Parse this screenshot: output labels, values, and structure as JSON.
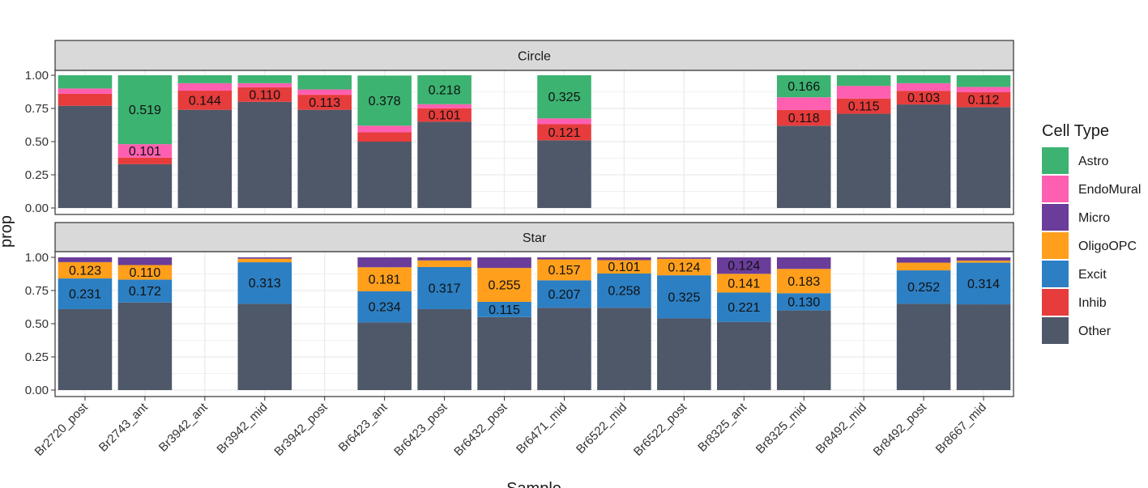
{
  "chart_data": {
    "type": "bar",
    "stacked": true,
    "facet_by": "row",
    "xlabel": "Sample",
    "ylabel": "prop",
    "ylim": [
      0,
      1
    ],
    "y_ticks": [
      "0.00",
      "0.25",
      "0.50",
      "0.75",
      "1.00"
    ],
    "grid": true,
    "legend_position": "right",
    "legend_title": "Cell Type",
    "categories": [
      "Br2720_post",
      "Br2743_ant",
      "Br3942_ant",
      "Br3942_mid",
      "Br3942_post",
      "Br6423_ant",
      "Br6423_post",
      "Br6432_post",
      "Br6471_mid",
      "Br6522_mid",
      "Br6522_post",
      "Br8325_ant",
      "Br8325_mid",
      "Br8492_mid",
      "Br8492_post",
      "Br8667_mid"
    ],
    "cell_types": [
      {
        "name": "Astro",
        "color": "#3cb371"
      },
      {
        "name": "EndoMural",
        "color": "#ff5fb0"
      },
      {
        "name": "Micro",
        "color": "#6a3d9a"
      },
      {
        "name": "OligoOPC",
        "color": "#ff9f1c"
      },
      {
        "name": "Excit",
        "color": "#2c7fc3"
      },
      {
        "name": "Inhib",
        "color": "#e63c3c"
      },
      {
        "name": "Other",
        "color": "#4f5869"
      }
    ],
    "facets": [
      {
        "name": "Circle",
        "bars": [
          {
            "sample": "Br2720_post",
            "segments": [
              {
                "type": "Other",
                "value": 0.77
              },
              {
                "type": "Inhib",
                "value": 0.09
              },
              {
                "type": "EndoMural",
                "value": 0.04
              },
              {
                "type": "Astro",
                "value": 0.1
              }
            ]
          },
          {
            "sample": "Br2743_ant",
            "segments": [
              {
                "type": "Other",
                "value": 0.33
              },
              {
                "type": "Inhib",
                "value": 0.05
              },
              {
                "type": "EndoMural",
                "value": 0.101,
                "label": "0.101"
              },
              {
                "type": "Astro",
                "value": 0.519,
                "label": "0.519"
              }
            ]
          },
          {
            "sample": "Br3942_ant",
            "segments": [
              {
                "type": "Other",
                "value": 0.74
              },
              {
                "type": "Inhib",
                "value": 0.144,
                "label": "0.144"
              },
              {
                "type": "EndoMural",
                "value": 0.056
              },
              {
                "type": "Astro",
                "value": 0.06
              }
            ]
          },
          {
            "sample": "Br3942_mid",
            "segments": [
              {
                "type": "Other",
                "value": 0.8
              },
              {
                "type": "Inhib",
                "value": 0.11,
                "label": "0.110"
              },
              {
                "type": "EndoMural",
                "value": 0.03
              },
              {
                "type": "Astro",
                "value": 0.06
              }
            ]
          },
          {
            "sample": "Br3942_post",
            "segments": [
              {
                "type": "Other",
                "value": 0.74
              },
              {
                "type": "Inhib",
                "value": 0.113,
                "label": "0.113"
              },
              {
                "type": "EndoMural",
                "value": 0.04
              },
              {
                "type": "Astro",
                "value": 0.107
              }
            ]
          },
          {
            "sample": "Br6423_ant",
            "segments": [
              {
                "type": "Other",
                "value": 0.5
              },
              {
                "type": "Inhib",
                "value": 0.07
              },
              {
                "type": "EndoMural",
                "value": 0.05
              },
              {
                "type": "Astro",
                "value": 0.378,
                "label": "0.378"
              }
            ]
          },
          {
            "sample": "Br6423_post",
            "segments": [
              {
                "type": "Other",
                "value": 0.65
              },
              {
                "type": "Inhib",
                "value": 0.101,
                "label": "0.101"
              },
              {
                "type": "EndoMural",
                "value": 0.031
              },
              {
                "type": "Astro",
                "value": 0.218,
                "label": "0.218"
              }
            ]
          },
          {
            "sample": "Br6471_mid",
            "segments": [
              {
                "type": "Other",
                "value": 0.51
              },
              {
                "type": "Inhib",
                "value": 0.121,
                "label": "0.121"
              },
              {
                "type": "EndoMural",
                "value": 0.044
              },
              {
                "type": "Astro",
                "value": 0.325,
                "label": "0.325"
              }
            ]
          },
          {
            "sample": "Br8325_mid",
            "segments": [
              {
                "type": "Other",
                "value": 0.62
              },
              {
                "type": "Inhib",
                "value": 0.118,
                "label": "0.118"
              },
              {
                "type": "EndoMural",
                "value": 0.096
              },
              {
                "type": "Astro",
                "value": 0.166,
                "label": "0.166"
              }
            ]
          },
          {
            "sample": "Br8492_mid",
            "segments": [
              {
                "type": "Other",
                "value": 0.71
              },
              {
                "type": "Inhib",
                "value": 0.115,
                "label": "0.115"
              },
              {
                "type": "EndoMural",
                "value": 0.095
              },
              {
                "type": "Astro",
                "value": 0.08
              }
            ]
          },
          {
            "sample": "Br8492_post",
            "segments": [
              {
                "type": "Other",
                "value": 0.78
              },
              {
                "type": "Inhib",
                "value": 0.103,
                "label": "0.103"
              },
              {
                "type": "EndoMural",
                "value": 0.057
              },
              {
                "type": "Astro",
                "value": 0.06
              }
            ]
          },
          {
            "sample": "Br8667_mid",
            "segments": [
              {
                "type": "Other",
                "value": 0.76
              },
              {
                "type": "Inhib",
                "value": 0.112,
                "label": "0.112"
              },
              {
                "type": "EndoMural",
                "value": 0.04
              },
              {
                "type": "Astro",
                "value": 0.088
              }
            ]
          }
        ]
      },
      {
        "name": "Star",
        "bars": [
          {
            "sample": "Br2720_post",
            "segments": [
              {
                "type": "Other",
                "value": 0.61
              },
              {
                "type": "Excit",
                "value": 0.231,
                "label": "0.231"
              },
              {
                "type": "OligoOPC",
                "value": 0.123,
                "label": "0.123"
              },
              {
                "type": "Micro",
                "value": 0.036
              }
            ]
          },
          {
            "sample": "Br2743_ant",
            "segments": [
              {
                "type": "Other",
                "value": 0.66
              },
              {
                "type": "Excit",
                "value": 0.172,
                "label": "0.172"
              },
              {
                "type": "OligoOPC",
                "value": 0.11,
                "label": "0.110"
              },
              {
                "type": "Micro",
                "value": 0.058
              }
            ]
          },
          {
            "sample": "Br3942_mid",
            "segments": [
              {
                "type": "Other",
                "value": 0.65
              },
              {
                "type": "Excit",
                "value": 0.313,
                "label": "0.313"
              },
              {
                "type": "OligoOPC",
                "value": 0.027
              },
              {
                "type": "Micro",
                "value": 0.01
              }
            ]
          },
          {
            "sample": "Br6423_ant",
            "segments": [
              {
                "type": "Other",
                "value": 0.51
              },
              {
                "type": "Excit",
                "value": 0.234,
                "label": "0.234"
              },
              {
                "type": "OligoOPC",
                "value": 0.181,
                "label": "0.181"
              },
              {
                "type": "Micro",
                "value": 0.075
              }
            ]
          },
          {
            "sample": "Br6423_post",
            "segments": [
              {
                "type": "Other",
                "value": 0.61
              },
              {
                "type": "Excit",
                "value": 0.317,
                "label": "0.317"
              },
              {
                "type": "OligoOPC",
                "value": 0.05
              },
              {
                "type": "Micro",
                "value": 0.023
              }
            ]
          },
          {
            "sample": "Br6432_post",
            "segments": [
              {
                "type": "Other",
                "value": 0.55
              },
              {
                "type": "Excit",
                "value": 0.115,
                "label": "0.115"
              },
              {
                "type": "OligoOPC",
                "value": 0.255,
                "label": "0.255"
              },
              {
                "type": "Micro",
                "value": 0.08
              }
            ]
          },
          {
            "sample": "Br6471_mid",
            "segments": [
              {
                "type": "Other",
                "value": 0.62
              },
              {
                "type": "Excit",
                "value": 0.207,
                "label": "0.207"
              },
              {
                "type": "OligoOPC",
                "value": 0.157,
                "label": "0.157"
              },
              {
                "type": "Micro",
                "value": 0.016
              }
            ]
          },
          {
            "sample": "Br6522_mid",
            "segments": [
              {
                "type": "Other",
                "value": 0.62
              },
              {
                "type": "Excit",
                "value": 0.258,
                "label": "0.258"
              },
              {
                "type": "OligoOPC",
                "value": 0.101,
                "label": "0.101"
              },
              {
                "type": "Micro",
                "value": 0.021
              }
            ]
          },
          {
            "sample": "Br6522_post",
            "segments": [
              {
                "type": "Other",
                "value": 0.54
              },
              {
                "type": "Excit",
                "value": 0.325,
                "label": "0.325"
              },
              {
                "type": "OligoOPC",
                "value": 0.124,
                "label": "0.124"
              },
              {
                "type": "Micro",
                "value": 0.011
              }
            ]
          },
          {
            "sample": "Br8325_ant",
            "segments": [
              {
                "type": "Other",
                "value": 0.514
              },
              {
                "type": "Excit",
                "value": 0.221,
                "label": "0.221"
              },
              {
                "type": "OligoOPC",
                "value": 0.141,
                "label": "0.141"
              },
              {
                "type": "Micro",
                "value": 0.124,
                "label": "0.124"
              }
            ]
          },
          {
            "sample": "Br8325_mid",
            "segments": [
              {
                "type": "Other",
                "value": 0.6
              },
              {
                "type": "Excit",
                "value": 0.13,
                "label": "0.130"
              },
              {
                "type": "OligoOPC",
                "value": 0.183,
                "label": "0.183"
              },
              {
                "type": "Micro",
                "value": 0.087
              }
            ]
          },
          {
            "sample": "Br8492_post",
            "segments": [
              {
                "type": "Other",
                "value": 0.65
              },
              {
                "type": "Excit",
                "value": 0.252,
                "label": "0.252"
              },
              {
                "type": "OligoOPC",
                "value": 0.058
              },
              {
                "type": "Micro",
                "value": 0.04
              }
            ]
          },
          {
            "sample": "Br8667_mid",
            "segments": [
              {
                "type": "Other",
                "value": 0.646
              },
              {
                "type": "Excit",
                "value": 0.314,
                "label": "0.314"
              },
              {
                "type": "OligoOPC",
                "value": 0.015
              },
              {
                "type": "Micro",
                "value": 0.025
              }
            ]
          }
        ]
      }
    ]
  }
}
